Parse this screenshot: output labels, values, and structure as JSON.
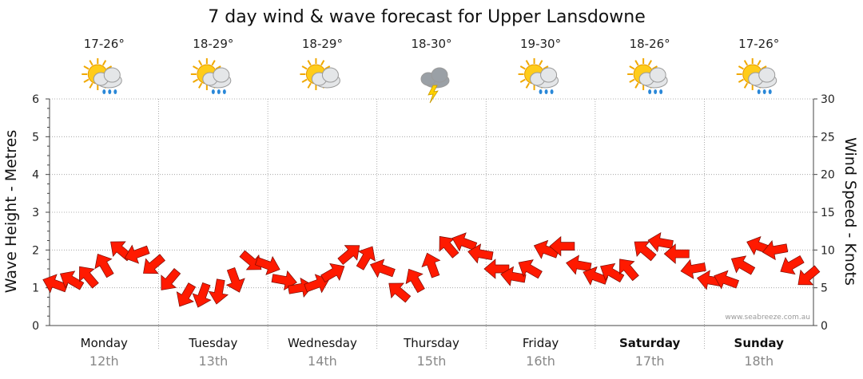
{
  "colors": {
    "arrow": "#ff1a00",
    "arrow_stroke": "#7a0b00",
    "grid": "#999999",
    "axis": "#444444"
  },
  "chart_data": {
    "type": "line",
    "title": "7 day wind & wave forecast for Upper Lansdowne",
    "ylabel": "Wave Height - Metres",
    "y2label": "Wind Speed - Knots",
    "ylim": [
      0,
      6
    ],
    "y2lim": [
      0,
      30
    ],
    "yticks": [
      "0",
      "1",
      "2",
      "3",
      "4",
      "5",
      "6"
    ],
    "y2ticks": [
      "0",
      "5",
      "10",
      "15",
      "20",
      "25",
      "30"
    ],
    "grid": true,
    "credit": "www.seabreeze.com.au",
    "days": [
      {
        "day": "Monday",
        "date": "12th",
        "temp": "17-26°",
        "icon": "sun-cloud-rain-icon",
        "bold": false
      },
      {
        "day": "Tuesday",
        "date": "13th",
        "temp": "18-29°",
        "icon": "sun-cloud-rain-icon",
        "bold": false
      },
      {
        "day": "Wednesday",
        "date": "14th",
        "temp": "18-29°",
        "icon": "sun-cloud-icon",
        "bold": false
      },
      {
        "day": "Thursday",
        "date": "15th",
        "temp": "18-30°",
        "icon": "storm-cloud-icon",
        "bold": false
      },
      {
        "day": "Friday",
        "date": "16th",
        "temp": "19-30°",
        "icon": "sun-cloud-rain-icon",
        "bold": false
      },
      {
        "day": "Saturday",
        "date": "17th",
        "temp": "18-26°",
        "icon": "sun-cloud-rain-icon",
        "bold": true
      },
      {
        "day": "Sunday",
        "date": "18th",
        "temp": "17-26°",
        "icon": "sun-cloud-rain-icon",
        "bold": true
      }
    ],
    "series": [
      {
        "name": "Wind Speed - Knots",
        "x": [
          0.05,
          0.2,
          0.35,
          0.5,
          0.65,
          0.8,
          0.95,
          1.1,
          1.25,
          1.4,
          1.55,
          1.7,
          1.85,
          2.0,
          2.15,
          2.3,
          2.45,
          2.6,
          2.75,
          2.9,
          3.05,
          3.2,
          3.35,
          3.5,
          3.65,
          3.8,
          3.95,
          4.1,
          4.25,
          4.4,
          4.55,
          4.7,
          4.85,
          5.0,
          5.15,
          5.3,
          5.45,
          5.6,
          5.75,
          5.9,
          6.05,
          6.2,
          6.35,
          6.5,
          6.65,
          6.8,
          6.95
        ],
        "values": [
          5.5,
          6.0,
          6.5,
          8.0,
          10.0,
          9.5,
          8.0,
          6.0,
          4.0,
          4.0,
          4.5,
          6.0,
          8.5,
          8.0,
          6.0,
          5.0,
          5.5,
          7.0,
          9.5,
          9.0,
          7.5,
          4.5,
          6.0,
          8.0,
          10.5,
          11.0,
          9.5,
          7.5,
          6.5,
          7.5,
          10.0,
          10.5,
          8.0,
          6.5,
          7.0,
          7.5,
          10.0,
          11.0,
          9.5,
          7.5,
          6.0,
          6.0,
          8.0,
          10.5,
          10.0,
          8.0,
          6.5
        ],
        "arrow_dir_deg": [
          200,
          210,
          230,
          240,
          220,
          160,
          140,
          130,
          120,
          110,
          100,
          70,
          40,
          20,
          10,
          350,
          340,
          330,
          320,
          300,
          200,
          220,
          240,
          250,
          230,
          200,
          190,
          180,
          190,
          210,
          200,
          180,
          190,
          200,
          210,
          230,
          220,
          190,
          180,
          170,
          190,
          200,
          210,
          200,
          170,
          150,
          140
        ]
      }
    ]
  }
}
